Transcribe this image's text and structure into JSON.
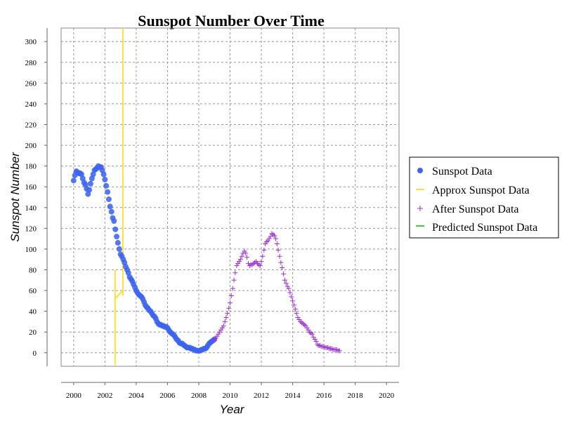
{
  "chart_data": {
    "type": "scatter",
    "title": "Sunspot Number Over Time",
    "xlabel": "Year",
    "ylabel": "Sunspot Number",
    "xlim": [
      1999.2,
      2020.8
    ],
    "ylim": [
      -13,
      313
    ],
    "x_ticks": [
      2000,
      2002,
      2004,
      2006,
      2008,
      2010,
      2012,
      2014,
      2016,
      2018,
      2020
    ],
    "y_ticks": [
      0,
      20,
      40,
      60,
      80,
      100,
      120,
      140,
      160,
      180,
      200,
      220,
      240,
      260,
      280,
      300
    ],
    "grid": true,
    "legend_position": "right",
    "series": [
      {
        "name": "Sunspot Data",
        "marker": "circle",
        "color": "#3c64f0",
        "points": [
          [
            2000.0,
            166
          ],
          [
            2000.08,
            171
          ],
          [
            2000.17,
            175
          ],
          [
            2000.25,
            174
          ],
          [
            2000.33,
            173
          ],
          [
            2000.42,
            173
          ],
          [
            2000.5,
            172
          ],
          [
            2000.58,
            168
          ],
          [
            2000.67,
            164
          ],
          [
            2000.75,
            162
          ],
          [
            2000.83,
            158
          ],
          [
            2000.92,
            153
          ],
          [
            2001.0,
            157
          ],
          [
            2001.08,
            163
          ],
          [
            2001.17,
            168
          ],
          [
            2001.25,
            172
          ],
          [
            2001.33,
            176
          ],
          [
            2001.42,
            177
          ],
          [
            2001.5,
            178
          ],
          [
            2001.58,
            180
          ],
          [
            2001.67,
            179
          ],
          [
            2001.75,
            179
          ],
          [
            2001.83,
            176
          ],
          [
            2001.92,
            172
          ],
          [
            2002.0,
            167
          ],
          [
            2002.08,
            161
          ],
          [
            2002.17,
            155
          ],
          [
            2002.25,
            148
          ],
          [
            2002.33,
            141
          ],
          [
            2002.42,
            136
          ],
          [
            2002.5,
            130
          ],
          [
            2002.58,
            127
          ],
          [
            2002.67,
            119
          ],
          [
            2002.75,
            112
          ],
          [
            2002.83,
            106
          ],
          [
            2002.92,
            100
          ],
          [
            2003.0,
            95
          ],
          [
            2003.08,
            93
          ],
          [
            2003.17,
            90
          ],
          [
            2003.25,
            87
          ],
          [
            2003.33,
            83
          ],
          [
            2003.42,
            80
          ],
          [
            2003.5,
            77
          ],
          [
            2003.58,
            73
          ],
          [
            2003.67,
            71
          ],
          [
            2003.75,
            69
          ],
          [
            2003.83,
            66
          ],
          [
            2003.92,
            63
          ],
          [
            2004.0,
            60
          ],
          [
            2004.08,
            58
          ],
          [
            2004.17,
            56
          ],
          [
            2004.25,
            55
          ],
          [
            2004.33,
            54
          ],
          [
            2004.42,
            52
          ],
          [
            2004.5,
            49
          ],
          [
            2004.58,
            46
          ],
          [
            2004.67,
            44
          ],
          [
            2004.75,
            43
          ],
          [
            2004.83,
            41
          ],
          [
            2004.92,
            40
          ],
          [
            2005.0,
            38
          ],
          [
            2005.08,
            36
          ],
          [
            2005.17,
            35
          ],
          [
            2005.25,
            33
          ],
          [
            2005.33,
            30
          ],
          [
            2005.42,
            28
          ],
          [
            2005.5,
            27
          ],
          [
            2005.58,
            27
          ],
          [
            2005.67,
            26
          ],
          [
            2005.75,
            26
          ],
          [
            2005.83,
            25
          ],
          [
            2005.92,
            25
          ],
          [
            2006.0,
            24
          ],
          [
            2006.08,
            22
          ],
          [
            2006.17,
            20
          ],
          [
            2006.25,
            19
          ],
          [
            2006.33,
            18
          ],
          [
            2006.42,
            17
          ],
          [
            2006.5,
            15
          ],
          [
            2006.58,
            13
          ],
          [
            2006.67,
            12
          ],
          [
            2006.75,
            10
          ],
          [
            2006.83,
            9
          ],
          [
            2006.92,
            9
          ],
          [
            2007.0,
            8
          ],
          [
            2007.08,
            7
          ],
          [
            2007.17,
            6
          ],
          [
            2007.25,
            5
          ],
          [
            2007.33,
            5
          ],
          [
            2007.42,
            5
          ],
          [
            2007.5,
            4
          ],
          [
            2007.58,
            4
          ],
          [
            2007.67,
            3
          ],
          [
            2007.75,
            3
          ],
          [
            2007.83,
            2
          ],
          [
            2007.92,
            2
          ],
          [
            2008.0,
            2
          ],
          [
            2008.08,
            2
          ],
          [
            2008.17,
            3
          ],
          [
            2008.25,
            3
          ],
          [
            2008.33,
            4
          ],
          [
            2008.42,
            4
          ],
          [
            2008.5,
            5
          ],
          [
            2008.58,
            7
          ],
          [
            2008.67,
            9
          ],
          [
            2008.75,
            10
          ],
          [
            2008.83,
            11
          ],
          [
            2008.92,
            12
          ],
          [
            2009.0,
            13
          ]
        ]
      },
      {
        "name": "Approx Sunspot Data",
        "marker": "line",
        "color": "#ffe040",
        "segments": [
          [
            [
              2002.65,
              80
            ],
            [
              2002.65,
              -12
            ]
          ],
          [
            [
              2002.65,
              52
            ],
            [
              2003.15,
              60
            ]
          ],
          [
            [
              2003.15,
              313
            ],
            [
              2003.15,
              55
            ]
          ]
        ]
      },
      {
        "name": "After Sunspot Data",
        "marker": "plus",
        "color": "#9b30d0",
        "points": [
          [
            2009.0,
            12
          ],
          [
            2009.08,
            14
          ],
          [
            2009.17,
            16
          ],
          [
            2009.25,
            18
          ],
          [
            2009.33,
            20
          ],
          [
            2009.42,
            22
          ],
          [
            2009.5,
            24
          ],
          [
            2009.58,
            26
          ],
          [
            2009.67,
            30
          ],
          [
            2009.75,
            34
          ],
          [
            2009.83,
            38
          ],
          [
            2009.92,
            43
          ],
          [
            2010.0,
            48
          ],
          [
            2010.08,
            55
          ],
          [
            2010.17,
            62
          ],
          [
            2010.25,
            70
          ],
          [
            2010.33,
            77
          ],
          [
            2010.42,
            84
          ],
          [
            2010.5,
            86
          ],
          [
            2010.58,
            88
          ],
          [
            2010.67,
            90
          ],
          [
            2010.75,
            93
          ],
          [
            2010.83,
            96
          ],
          [
            2010.92,
            98
          ],
          [
            2011.0,
            96
          ],
          [
            2011.08,
            92
          ],
          [
            2011.17,
            86
          ],
          [
            2011.25,
            84
          ],
          [
            2011.33,
            85
          ],
          [
            2011.42,
            85
          ],
          [
            2011.5,
            86
          ],
          [
            2011.58,
            87
          ],
          [
            2011.67,
            88
          ],
          [
            2011.75,
            86
          ],
          [
            2011.83,
            85
          ],
          [
            2011.92,
            84
          ],
          [
            2012.0,
            88
          ],
          [
            2012.08,
            93
          ],
          [
            2012.17,
            99
          ],
          [
            2012.25,
            105
          ],
          [
            2012.33,
            107
          ],
          [
            2012.42,
            108
          ],
          [
            2012.5,
            110
          ],
          [
            2012.58,
            112
          ],
          [
            2012.67,
            115
          ],
          [
            2012.75,
            114
          ],
          [
            2012.83,
            113
          ],
          [
            2012.92,
            110
          ],
          [
            2013.0,
            105
          ],
          [
            2013.08,
            99
          ],
          [
            2013.17,
            93
          ],
          [
            2013.25,
            87
          ],
          [
            2013.33,
            82
          ],
          [
            2013.42,
            76
          ],
          [
            2013.5,
            70
          ],
          [
            2013.58,
            67
          ],
          [
            2013.67,
            64
          ],
          [
            2013.75,
            62
          ],
          [
            2013.83,
            58
          ],
          [
            2013.92,
            54
          ],
          [
            2014.0,
            50
          ],
          [
            2014.08,
            46
          ],
          [
            2014.17,
            42
          ],
          [
            2014.25,
            38
          ],
          [
            2014.33,
            34
          ],
          [
            2014.42,
            32
          ],
          [
            2014.5,
            30
          ],
          [
            2014.58,
            29
          ],
          [
            2014.67,
            28
          ],
          [
            2014.75,
            27
          ],
          [
            2014.83,
            26
          ],
          [
            2014.92,
            24
          ],
          [
            2015.0,
            22
          ],
          [
            2015.08,
            20
          ],
          [
            2015.17,
            19
          ],
          [
            2015.25,
            18
          ],
          [
            2015.33,
            15
          ],
          [
            2015.42,
            13
          ],
          [
            2015.5,
            11
          ],
          [
            2015.58,
            8
          ],
          [
            2015.67,
            7
          ],
          [
            2015.75,
            7
          ],
          [
            2015.83,
            6
          ],
          [
            2015.92,
            6
          ],
          [
            2016.0,
            6
          ],
          [
            2016.08,
            5
          ],
          [
            2016.17,
            5
          ],
          [
            2016.25,
            5
          ],
          [
            2016.33,
            4
          ],
          [
            2016.42,
            4
          ],
          [
            2016.5,
            4
          ],
          [
            2016.58,
            3
          ],
          [
            2016.67,
            3
          ],
          [
            2016.75,
            3
          ],
          [
            2016.83,
            3
          ],
          [
            2016.92,
            2
          ],
          [
            2017.0,
            2
          ]
        ]
      },
      {
        "name": "Predicted Sunspot Data",
        "marker": "line",
        "color": "#3fd23f",
        "points": []
      }
    ]
  }
}
